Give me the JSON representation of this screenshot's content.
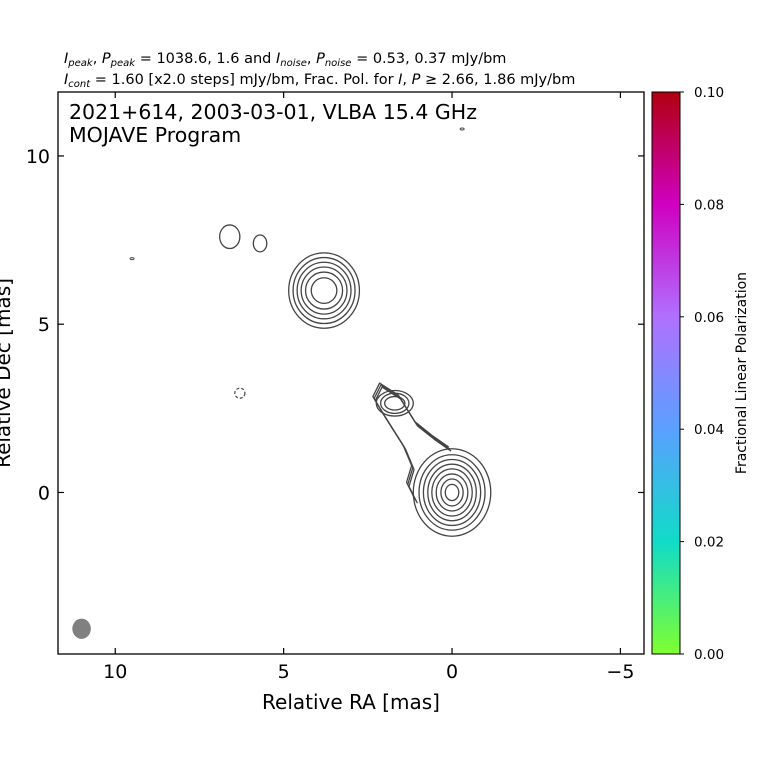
{
  "header": {
    "line1": "I_peak, P_peak = 1038.6, 1.6 and I_noise, P_noise = 0.53, 0.37 mJy/bm",
    "line2": "I_cont = 1.60 [x2.0 steps] mJy/bm, Frac. Pol. for I, P ≥ 2.66, 1.86 mJy/bm",
    "peak_label": "peak",
    "noise_label": "noise",
    "cont_label": "cont",
    "peak_values": "= 1038.6, 1.6 and",
    "noise_values": "= 0.53, 0.37 mJy/bm",
    "cont_values": "= 1.60 [x2.0 steps] mJy/bm, Frac. Pol. for",
    "fracpol_values": "≥ 2.66, 1.86 mJy/bm"
  },
  "chart_data": {
    "type": "contour",
    "source_title": "2021+614, 2003-03-01, VLBA 15.4 GHz",
    "program": "MOJAVE Program",
    "xlabel": "Relative RA [mas]",
    "ylabel": "Relative Dec [mas]",
    "xlim": [
      11.7,
      -5.7
    ],
    "ylim": [
      -4.8,
      11.9
    ],
    "xticks": [
      10,
      5,
      0,
      -5
    ],
    "xtick_labels": [
      "10",
      "5",
      "0",
      "−5"
    ],
    "yticks": [
      10,
      5,
      0
    ],
    "ytick_labels": [
      "10",
      "5",
      "0"
    ],
    "contour_color": "#444444",
    "contour_levels_mJy": [
      1.6,
      3.2,
      6.4,
      12.8,
      25.6,
      51.2,
      102.4,
      204.8,
      409.6,
      819.2
    ],
    "components": [
      {
        "name": "core",
        "x": 0.0,
        "y": 0.0,
        "rx": [
          1.15,
          0.98,
          0.85,
          0.72,
          0.6,
          0.47,
          0.33,
          0.2
        ],
        "ry": [
          1.3,
          1.12,
          0.98,
          0.84,
          0.7,
          0.55,
          0.4,
          0.24
        ]
      },
      {
        "name": "jet-knot",
        "x": 1.7,
        "y": 2.65,
        "rx": [
          0.55,
          0.42,
          0.3
        ],
        "ry": [
          0.38,
          0.3,
          0.2
        ]
      },
      {
        "name": "northern-component",
        "x": 3.8,
        "y": 6.0,
        "rx": [
          1.05,
          0.92,
          0.8,
          0.68,
          0.55,
          0.38
        ],
        "ry": [
          1.12,
          0.98,
          0.84,
          0.7,
          0.55,
          0.38
        ]
      },
      {
        "name": "blob-1",
        "x": 6.6,
        "y": 7.6,
        "rx": [
          0.3
        ],
        "ry": [
          0.35
        ]
      },
      {
        "name": "blob-2",
        "x": 5.7,
        "y": 7.4,
        "rx": [
          0.2
        ],
        "ry": [
          0.25
        ]
      }
    ],
    "negative_contours": [
      {
        "x": 6.3,
        "y": 2.95,
        "r": 0.15
      }
    ],
    "specks": [
      {
        "x": 9.5,
        "y": 6.95
      },
      {
        "x": -0.3,
        "y": 10.8
      }
    ],
    "beam": {
      "x": 11.0,
      "y": -4.05,
      "bmaj_mas": 0.6,
      "bmin_mas": 0.55,
      "color": "#808080"
    },
    "colorbar": {
      "label": "Fractional Linear Polarization",
      "range": [
        0.0,
        0.1
      ],
      "ticks": [
        0.0,
        0.02,
        0.04,
        0.06,
        0.08,
        0.1
      ],
      "tick_labels": [
        "0.00",
        "0.02",
        "0.04",
        "0.06",
        "0.08",
        "0.10"
      ],
      "colormap_stops": [
        "#80ff30",
        "#10dcc8",
        "#5aa0ff",
        "#b070ff",
        "#d000c0",
        "#b00010"
      ]
    }
  }
}
